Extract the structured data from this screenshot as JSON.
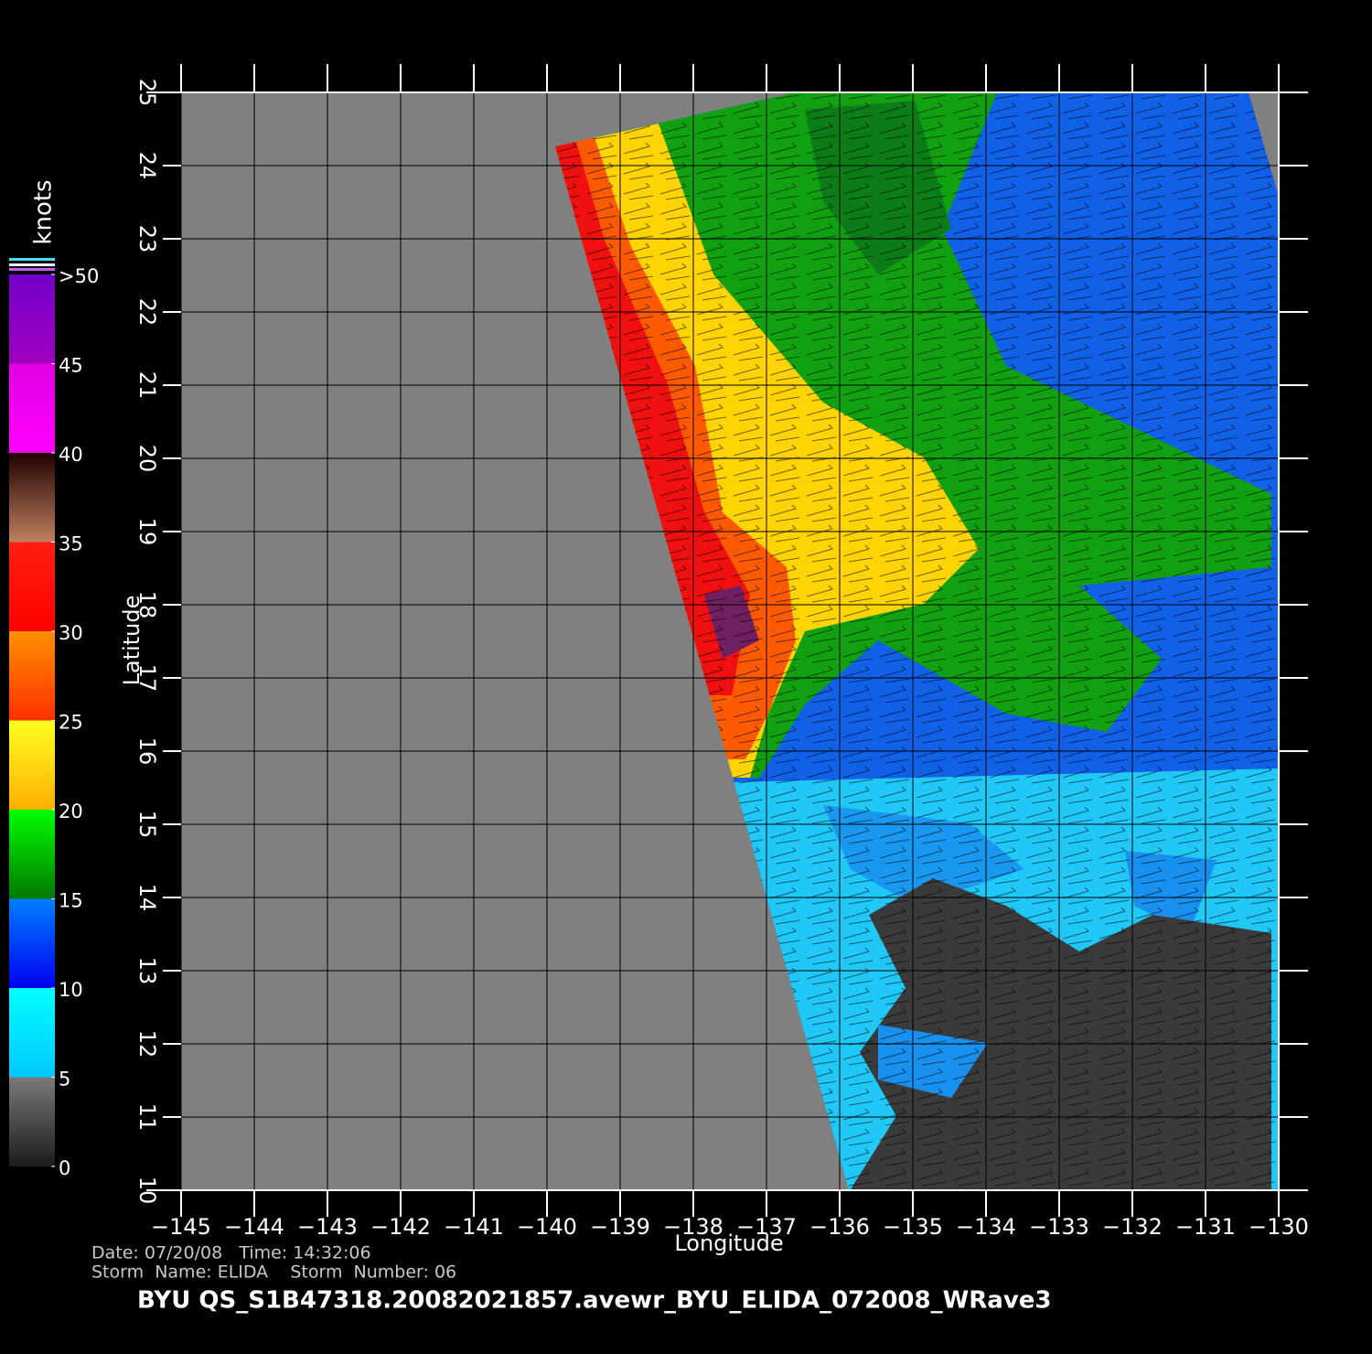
{
  "map": {
    "xaxis": {
      "label": "Longitude",
      "lim": [
        -145,
        -130
      ],
      "ticks": [
        {
          "value": -145,
          "label": "−145"
        },
        {
          "value": -144,
          "label": "−144"
        },
        {
          "value": -143,
          "label": "−143"
        },
        {
          "value": -142,
          "label": "−142"
        },
        {
          "value": -141,
          "label": "−141"
        },
        {
          "value": -140,
          "label": "−140"
        },
        {
          "value": -139,
          "label": "−139"
        },
        {
          "value": -138,
          "label": "−138"
        },
        {
          "value": -137,
          "label": "−137"
        },
        {
          "value": -136,
          "label": "−136"
        },
        {
          "value": -135,
          "label": "−135"
        },
        {
          "value": -134,
          "label": "−134"
        },
        {
          "value": -133,
          "label": "−133"
        },
        {
          "value": -132,
          "label": "−132"
        },
        {
          "value": -131,
          "label": "−131"
        },
        {
          "value": -130,
          "label": "−130"
        }
      ]
    },
    "yaxis": {
      "label": "Latitude",
      "lim": [
        10,
        25
      ],
      "ticks": [
        10,
        11,
        12,
        13,
        14,
        15,
        16,
        17,
        18,
        19,
        20,
        21,
        22,
        23,
        24,
        25
      ]
    },
    "grid": true
  },
  "colorbar": {
    "label": "knots",
    "lim": [
      0,
      50
    ],
    "ticks": [
      0,
      5,
      10,
      15,
      20,
      25,
      30,
      35,
      40,
      45,
      {
        "value": 50,
        "label": ">50"
      }
    ],
    "colors": [
      [
        "#1c1c1c",
        "#7a7a7a"
      ],
      [
        "#00c8ff",
        "#00ffff"
      ],
      [
        "#0000f0",
        "#0080ff"
      ],
      [
        "#007800",
        "#00ff00"
      ],
      [
        "#ffb000",
        "#ffff20"
      ],
      [
        "#ff3000",
        "#ff9000"
      ],
      [
        "#ff0000",
        "#ff2010"
      ],
      [
        "#c08060",
        "#200000"
      ],
      [
        "#ff00ff",
        "#e000e0"
      ],
      [
        "#a000c0",
        "#7000c8"
      ]
    ]
  },
  "footer": {
    "date_line": "Date: 07/20/08   Time: 14:32:06",
    "storm_line": "Storm  Name: ELIDA    Storm  Number: 06",
    "title": "BYU  QS_S1B47318.20082021857.avewr_BYU_ELIDA_072008_WRave3"
  }
}
